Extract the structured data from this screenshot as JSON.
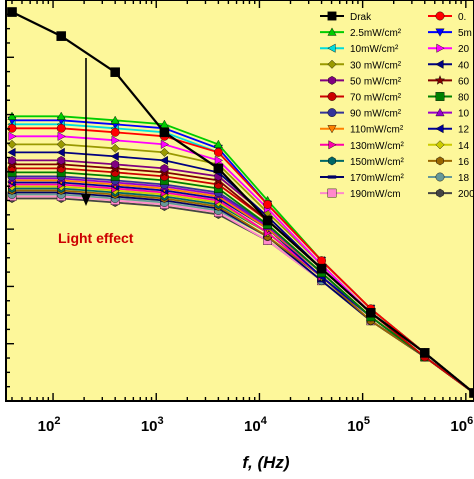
{
  "chart_data": {
    "type": "line",
    "title": "",
    "xlabel": "f, (Hz)",
    "ylabel": "",
    "xscale": "log",
    "xlim": [
      35,
      1200000.0
    ],
    "x_ticks": [
      {
        "value": 100,
        "base": "10",
        "exp": "2"
      },
      {
        "value": 1000,
        "base": "10",
        "exp": "3"
      },
      {
        "value": 10000,
        "base": "10",
        "exp": "4"
      },
      {
        "value": 100000,
        "base": "10",
        "exp": "5"
      },
      {
        "value": 1000000,
        "base": "10",
        "exp": "6"
      }
    ],
    "ylim": [
      0,
      1
    ],
    "y_tick_labels_visible": false,
    "background": "#fdf79a",
    "frame_color": "#000000",
    "legend_placement": "top-right",
    "annotation": {
      "text": "Light effect",
      "color": "#cc0000"
    },
    "x": [
      40,
      120,
      400,
      1200,
      4000,
      12000,
      40000,
      120000,
      400000,
      1200000
    ],
    "series": [
      {
        "name": "Drak",
        "color": "#000000",
        "marker": "square",
        "values": [
          0.97,
          0.91,
          0.82,
          0.67,
          0.58,
          0.45,
          0.33,
          0.22,
          0.12,
          0.02
        ]
      },
      {
        "name": "0.",
        "color": "#ff0000",
        "marker": "circle",
        "values": [
          0.68,
          0.68,
          0.67,
          0.66,
          0.62,
          0.49,
          0.35,
          0.23,
          0.12,
          0.02
        ]
      },
      {
        "name": "2.5mW/cm²",
        "color": "#00cc00",
        "marker": "triangle-up",
        "values": [
          0.71,
          0.71,
          0.7,
          0.69,
          0.64,
          0.5,
          0.35,
          0.23,
          0.12,
          0.02
        ]
      },
      {
        "name": "5m",
        "color": "#0000ff",
        "marker": "triangle-down",
        "values": [
          0.7,
          0.7,
          0.69,
          0.68,
          0.63,
          0.49,
          0.35,
          0.23,
          0.12,
          0.02
        ]
      },
      {
        "name": "10mW/cm²",
        "color": "#00dddd",
        "marker": "triangle-left",
        "values": [
          0.69,
          0.69,
          0.68,
          0.67,
          0.62,
          0.49,
          0.35,
          0.23,
          0.12,
          0.02
        ]
      },
      {
        "name": "20",
        "color": "#ff00ff",
        "marker": "triangle-right",
        "values": [
          0.66,
          0.66,
          0.65,
          0.64,
          0.6,
          0.48,
          0.34,
          0.22,
          0.12,
          0.02
        ]
      },
      {
        "name": "30 mW/cm²",
        "color": "#999900",
        "marker": "diamond",
        "values": [
          0.64,
          0.64,
          0.63,
          0.62,
          0.59,
          0.47,
          0.34,
          0.22,
          0.12,
          0.02
        ]
      },
      {
        "name": "40",
        "color": "#000080",
        "marker": "triangle-left",
        "values": [
          0.62,
          0.62,
          0.61,
          0.6,
          0.57,
          0.46,
          0.33,
          0.22,
          0.12,
          0.02
        ]
      },
      {
        "name": "50 mW/cm²",
        "color": "#800080",
        "marker": "hexagon",
        "values": [
          0.6,
          0.6,
          0.59,
          0.58,
          0.56,
          0.46,
          0.33,
          0.22,
          0.12,
          0.02
        ]
      },
      {
        "name": "60",
        "color": "#800000",
        "marker": "star",
        "values": [
          0.59,
          0.59,
          0.58,
          0.57,
          0.55,
          0.45,
          0.33,
          0.22,
          0.12,
          0.02
        ]
      },
      {
        "name": "70 mW/cm²",
        "color": "#cc0000",
        "marker": "circle",
        "values": [
          0.58,
          0.58,
          0.57,
          0.56,
          0.54,
          0.45,
          0.33,
          0.22,
          0.11,
          0.02
        ]
      },
      {
        "name": "80",
        "color": "#008000",
        "marker": "square",
        "values": [
          0.57,
          0.57,
          0.56,
          0.55,
          0.53,
          0.44,
          0.32,
          0.21,
          0.11,
          0.02
        ]
      },
      {
        "name": "90 mW/cm²",
        "color": "#333399",
        "marker": "circle",
        "values": [
          0.56,
          0.56,
          0.55,
          0.54,
          0.52,
          0.44,
          0.32,
          0.21,
          0.11,
          0.02
        ]
      },
      {
        "name": "10",
        "color": "#9900cc",
        "marker": "triangle-up",
        "values": [
          0.555,
          0.555,
          0.545,
          0.535,
          0.515,
          0.435,
          0.32,
          0.21,
          0.11,
          0.02
        ]
      },
      {
        "name": "110mW/cm²",
        "color": "#ff8000",
        "marker": "triangle-down",
        "values": [
          0.55,
          0.55,
          0.54,
          0.53,
          0.51,
          0.43,
          0.32,
          0.21,
          0.11,
          0.02
        ]
      },
      {
        "name": "12",
        "color": "#000099",
        "marker": "triangle-left",
        "values": [
          0.545,
          0.545,
          0.535,
          0.525,
          0.505,
          0.43,
          0.31,
          0.21,
          0.11,
          0.02
        ]
      },
      {
        "name": "130mW/cm²",
        "color": "#ff00aa",
        "marker": "triangle-right",
        "values": [
          0.54,
          0.54,
          0.53,
          0.52,
          0.5,
          0.42,
          0.31,
          0.21,
          0.11,
          0.02
        ]
      },
      {
        "name": "14",
        "color": "#cccc00",
        "marker": "diamond",
        "values": [
          0.535,
          0.535,
          0.525,
          0.515,
          0.495,
          0.42,
          0.31,
          0.21,
          0.11,
          0.02
        ]
      },
      {
        "name": "150mW/cm²",
        "color": "#006666",
        "marker": "hexagon",
        "values": [
          0.53,
          0.53,
          0.52,
          0.51,
          0.49,
          0.42,
          0.31,
          0.21,
          0.11,
          0.02
        ]
      },
      {
        "name": "16",
        "color": "#996600",
        "marker": "hexagon",
        "values": [
          0.525,
          0.525,
          0.515,
          0.505,
          0.485,
          0.41,
          0.31,
          0.2,
          0.11,
          0.02
        ]
      },
      {
        "name": "170mW/cm²",
        "color": "#000066",
        "marker": "dash",
        "values": [
          0.52,
          0.52,
          0.51,
          0.5,
          0.48,
          0.41,
          0.3,
          0.2,
          0.11,
          0.02
        ]
      },
      {
        "name": "18",
        "color": "#669999",
        "marker": "circle",
        "values": [
          0.515,
          0.515,
          0.505,
          0.495,
          0.475,
          0.41,
          0.3,
          0.2,
          0.11,
          0.02
        ]
      },
      {
        "name": "190mW/cm",
        "color": "#ff88cc",
        "marker": "square",
        "values": [
          0.51,
          0.51,
          0.5,
          0.49,
          0.47,
          0.4,
          0.3,
          0.2,
          0.11,
          0.02
        ]
      },
      {
        "name": "200",
        "color": "#444444",
        "marker": "hexagon",
        "values": [
          0.505,
          0.505,
          0.495,
          0.485,
          0.465,
          0.4,
          0.3,
          0.2,
          0.11,
          0.02
        ]
      }
    ]
  }
}
